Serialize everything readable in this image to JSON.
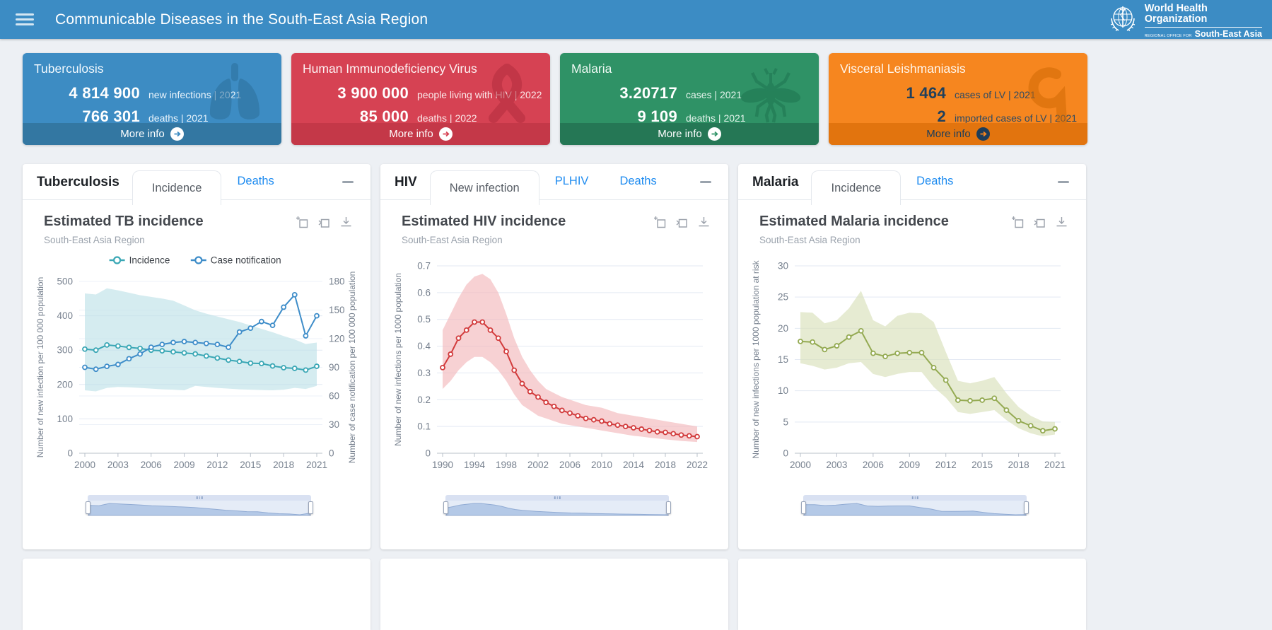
{
  "header": {
    "title": "Communicable Diseases in the South-East Asia Region",
    "logo": {
      "org_line1": "World Health",
      "org_line2": "Organization",
      "office_prefix": "REGIONAL OFFICE FOR",
      "office_name": "South-East Asia"
    }
  },
  "cards": [
    {
      "title": "Tuberculosis",
      "stats": [
        {
          "value": "4 814 900",
          "label": "new infections | 2021"
        },
        {
          "value": "766 301",
          "label": "deaths | 2021"
        }
      ],
      "more_info_label": "More info",
      "icon": "lungs-icon",
      "colors": {
        "bg": "#3d8cc3",
        "footer_bg": "#3377a2",
        "title": "#f2f9fe",
        "value": "#ffffff",
        "label": "#eaf4fb",
        "footer_text": "#ffffff",
        "arrow_circle": "#ffffff",
        "arrow": "#3d8cc3",
        "icon": "#2d6f9b"
      }
    },
    {
      "title": "Human Immunodeficiency Virus",
      "stats": [
        {
          "value": "3 900 000",
          "label": "people living with HIV | 2022"
        },
        {
          "value": "85 000",
          "label": "deaths | 2022"
        }
      ],
      "more_info_label": "More info",
      "icon": "awareness-ribbon-icon",
      "colors": {
        "bg": "#d64253",
        "footer_bg": "#c43848",
        "title": "#fdf2f3",
        "value": "#ffffff",
        "label": "#fbe9ea",
        "footer_text": "#ffffff",
        "arrow_circle": "#ffffff",
        "arrow": "#d64253",
        "icon": "#b22e3e"
      }
    },
    {
      "title": "Malaria",
      "stats": [
        {
          "value": "3.20717",
          "label": "cases | 2021"
        },
        {
          "value": "9 109",
          "label": "deaths | 2021"
        }
      ],
      "more_info_label": "More info",
      "icon": "mosquito-icon",
      "colors": {
        "bg": "#2f9266",
        "footer_bg": "#257755",
        "title": "#effaf4",
        "value": "#ffffff",
        "label": "#e4f4ec",
        "footer_text": "#ffffff",
        "arrow_circle": "#ffffff",
        "arrow": "#2f9266",
        "icon": "#1e7450"
      }
    },
    {
      "title": "Visceral Leishmaniasis",
      "stats": [
        {
          "value": "1 464",
          "label": "cases of LV | 2021"
        },
        {
          "value": "2",
          "label": "imported cases of LV | 2021"
        }
      ],
      "more_info_label": "More info",
      "icon": "sandfly-parasite-icon",
      "colors": {
        "bg": "#f6861f",
        "footer_bg": "#e2740e",
        "title": "#fff6ec",
        "value": "#20405c",
        "label": "#2d4a63",
        "footer_text": "#1d3d5a",
        "arrow_circle": "#1d3d5a",
        "arrow": "#f6861f",
        "icon": "#d06a05"
      }
    }
  ],
  "panels": [
    {
      "name": "Tuberculosis",
      "tabs": [
        {
          "label": "Incidence",
          "active": true
        },
        {
          "label": "Deaths",
          "active": false
        }
      ]
    },
    {
      "name": "HIV",
      "tabs": [
        {
          "label": "New infection",
          "active": true
        },
        {
          "label": "PLHIV",
          "active": false
        },
        {
          "label": "Deaths",
          "active": false
        }
      ]
    },
    {
      "name": "Malaria",
      "tabs": [
        {
          "label": "Incidence",
          "active": true
        },
        {
          "label": "Deaths",
          "active": false
        }
      ]
    }
  ],
  "chart_data": [
    {
      "panel": "Tuberculosis",
      "type": "line",
      "title": "Estimated TB incidence",
      "subtitle": "South-East Asia Region",
      "x": [
        2000,
        2001,
        2002,
        2003,
        2004,
        2005,
        2006,
        2007,
        2008,
        2009,
        2010,
        2011,
        2012,
        2013,
        2014,
        2015,
        2016,
        2017,
        2018,
        2019,
        2020,
        2021
      ],
      "x_tick_labels": [
        "2000",
        "2003",
        "2006",
        "2009",
        "2012",
        "2015",
        "2018",
        "2021"
      ],
      "left_axis": {
        "label": "Number of new infection per 100 000 population",
        "min": 0,
        "max": 500,
        "ticks": [
          0,
          100,
          200,
          300,
          400,
          500
        ]
      },
      "right_axis": {
        "label": "Number of case notification per 100 000 population",
        "min": 0,
        "max": 180,
        "ticks": [
          0,
          30,
          60,
          90,
          120,
          150,
          180
        ]
      },
      "legend_position": "top",
      "grid": true,
      "series": [
        {
          "name": "Incidence",
          "axis": "left",
          "color": "#3aa7b5",
          "values": [
            303,
            300,
            315,
            312,
            308,
            305,
            300,
            298,
            295,
            292,
            289,
            283,
            277,
            271,
            267,
            262,
            261,
            254,
            249,
            247,
            242,
            253
          ]
        },
        {
          "name": "Case notification",
          "axis": "right",
          "color": "#3e8dc9",
          "values": [
            90,
            88,
            91,
            93,
            99,
            104,
            111,
            114,
            116,
            117,
            116,
            115,
            114,
            111,
            127,
            131,
            138,
            134,
            153,
            166,
            123,
            144
          ]
        }
      ],
      "band": {
        "axis": "left",
        "color": "#bfe2e8",
        "upper": [
          465,
          462,
          480,
          474,
          467,
          460,
          455,
          450,
          444,
          430,
          416,
          406,
          398,
          390,
          382,
          372,
          362,
          352,
          341,
          331,
          318,
          322
        ],
        "lower": [
          183,
          180,
          190,
          193,
          192,
          190,
          188,
          186,
          185,
          183,
          196,
          193,
          190,
          188,
          186,
          185,
          184,
          183,
          185,
          190,
          187,
          196
        ]
      }
    },
    {
      "panel": "HIV",
      "type": "line",
      "title": "Estimated HIV incidence",
      "subtitle": "South-East Asia Region",
      "x": [
        1990,
        1991,
        1992,
        1993,
        1994,
        1995,
        1996,
        1997,
        1998,
        1999,
        2000,
        2001,
        2002,
        2003,
        2004,
        2005,
        2006,
        2007,
        2008,
        2009,
        2010,
        2011,
        2012,
        2013,
        2014,
        2015,
        2016,
        2017,
        2018,
        2019,
        2020,
        2021,
        2022
      ],
      "x_tick_labels": [
        "1990",
        "1994",
        "1998",
        "2002",
        "2006",
        "2010",
        "2014",
        "2018",
        "2022"
      ],
      "left_axis": {
        "label": "Number of new infections per 1000 population",
        "min": 0,
        "max": 0.7,
        "ticks": [
          0,
          0.1,
          0.2,
          0.3,
          0.4,
          0.5,
          0.6,
          0.7
        ]
      },
      "grid": true,
      "series": [
        {
          "name": "New infections",
          "axis": "left",
          "color": "#d23b3c",
          "values": [
            0.32,
            0.37,
            0.43,
            0.46,
            0.49,
            0.49,
            0.46,
            0.43,
            0.38,
            0.31,
            0.26,
            0.23,
            0.21,
            0.19,
            0.175,
            0.16,
            0.15,
            0.14,
            0.13,
            0.125,
            0.12,
            0.11,
            0.105,
            0.1,
            0.095,
            0.09,
            0.085,
            0.08,
            0.078,
            0.073,
            0.068,
            0.065,
            0.062
          ]
        }
      ],
      "band": {
        "axis": "left",
        "color": "#f3b9bc",
        "upper": [
          0.46,
          0.52,
          0.58,
          0.63,
          0.66,
          0.67,
          0.65,
          0.6,
          0.52,
          0.43,
          0.36,
          0.31,
          0.27,
          0.24,
          0.225,
          0.21,
          0.2,
          0.19,
          0.18,
          0.175,
          0.17,
          0.16,
          0.15,
          0.145,
          0.14,
          0.135,
          0.13,
          0.125,
          0.12,
          0.115,
          0.11,
          0.105,
          0.1
        ],
        "lower": [
          0.24,
          0.27,
          0.31,
          0.34,
          0.36,
          0.36,
          0.34,
          0.31,
          0.27,
          0.22,
          0.18,
          0.16,
          0.14,
          0.13,
          0.12,
          0.11,
          0.105,
          0.1,
          0.095,
          0.09,
          0.085,
          0.08,
          0.075,
          0.07,
          0.065,
          0.062,
          0.058,
          0.055,
          0.052,
          0.049,
          0.046,
          0.044,
          0.042
        ]
      }
    },
    {
      "panel": "Malaria",
      "type": "line",
      "title": "Estimated Malaria incidence",
      "subtitle": "South-East Asia Region",
      "x": [
        2000,
        2001,
        2002,
        2003,
        2004,
        2005,
        2006,
        2007,
        2008,
        2009,
        2010,
        2011,
        2012,
        2013,
        2014,
        2015,
        2016,
        2017,
        2018,
        2019,
        2020,
        2021
      ],
      "x_tick_labels": [
        "2000",
        "2003",
        "2006",
        "2009",
        "2012",
        "2015",
        "2018",
        "2021"
      ],
      "left_axis": {
        "label": "Number of new infections per 1000 population at risk",
        "min": 0,
        "max": 30,
        "ticks": [
          0,
          5,
          10,
          15,
          20,
          25,
          30
        ]
      },
      "grid": true,
      "series": [
        {
          "name": "Incidence",
          "axis": "left",
          "color": "#94aa52",
          "values": [
            17.9,
            17.8,
            16.6,
            17.2,
            18.6,
            19.6,
            16.0,
            15.5,
            16.0,
            16.1,
            16.1,
            13.7,
            11.7,
            8.5,
            8.4,
            8.5,
            8.8,
            6.9,
            5.2,
            4.4,
            3.6,
            3.9
          ]
        }
      ],
      "band": {
        "axis": "left",
        "color": "#d9e0ba",
        "upper": [
          22.6,
          22.5,
          20.8,
          21.3,
          23.2,
          26.0,
          21.3,
          20.3,
          22.0,
          22.5,
          22.4,
          21.0,
          16.2,
          11.6,
          11.2,
          11.6,
          12.2,
          9.6,
          7.4,
          6.0,
          5.1,
          5.0
        ],
        "lower": [
          14.4,
          14.0,
          13.4,
          13.7,
          14.4,
          14.6,
          12.7,
          12.2,
          12.7,
          13.0,
          13.0,
          10.6,
          8.9,
          6.6,
          6.3,
          6.6,
          6.9,
          5.3,
          4.0,
          3.2,
          2.7,
          3.0
        ]
      }
    }
  ]
}
